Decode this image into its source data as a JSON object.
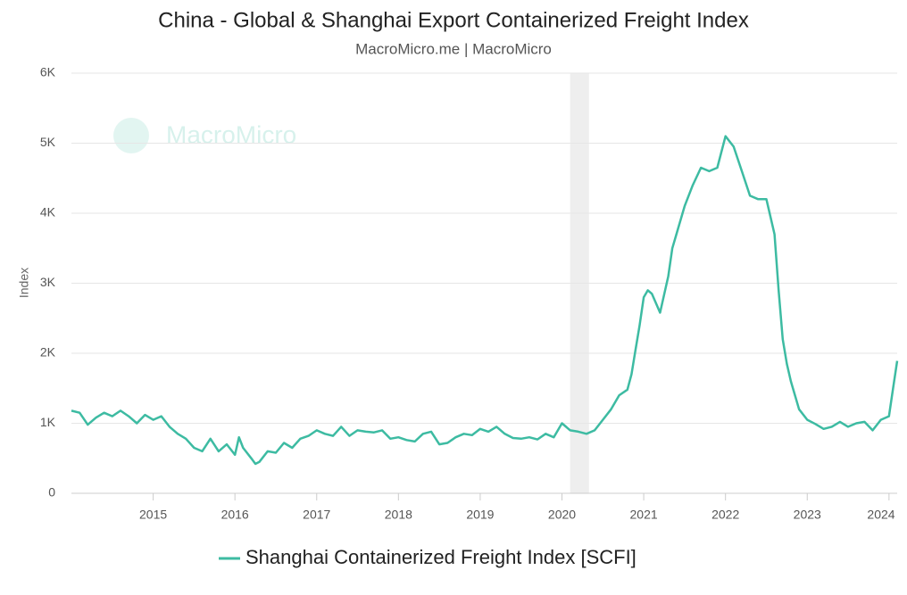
{
  "chart_data": {
    "type": "line",
    "title": "China - Global & Shanghai Export Containerized Freight Index",
    "subtitle": "MacroMicro.me | MacroMicro",
    "watermark": "MacroMicro",
    "y_label": "Index",
    "x": [
      2014.0,
      2014.1,
      2014.2,
      2014.3,
      2014.4,
      2014.5,
      2014.6,
      2014.7,
      2014.8,
      2014.9,
      2015.0,
      2015.1,
      2015.2,
      2015.3,
      2015.4,
      2015.5,
      2015.6,
      2015.7,
      2015.8,
      2015.9,
      2016.0,
      2016.05,
      2016.1,
      2016.2,
      2016.25,
      2016.3,
      2016.4,
      2016.5,
      2016.6,
      2016.7,
      2016.8,
      2016.9,
      2017.0,
      2017.1,
      2017.2,
      2017.3,
      2017.4,
      2017.5,
      2017.6,
      2017.7,
      2017.8,
      2017.9,
      2018.0,
      2018.1,
      2018.2,
      2018.3,
      2018.4,
      2018.5,
      2018.6,
      2018.7,
      2018.8,
      2018.9,
      2019.0,
      2019.1,
      2019.2,
      2019.3,
      2019.4,
      2019.5,
      2019.6,
      2019.7,
      2019.8,
      2019.9,
      2020.0,
      2020.1,
      2020.2,
      2020.3,
      2020.4,
      2020.5,
      2020.6,
      2020.7,
      2020.8,
      2020.85,
      2020.9,
      2020.95,
      2021.0,
      2021.05,
      2021.1,
      2021.2,
      2021.3,
      2021.35,
      2021.4,
      2021.5,
      2021.6,
      2021.7,
      2021.8,
      2021.9,
      2022.0,
      2022.1,
      2022.2,
      2022.3,
      2022.4,
      2022.5,
      2022.6,
      2022.65,
      2022.7,
      2022.75,
      2022.8,
      2022.9,
      2023.0,
      2023.1,
      2023.2,
      2023.3,
      2023.4,
      2023.5,
      2023.6,
      2023.7,
      2023.8,
      2023.9,
      2024.0,
      2024.05,
      2024.1
    ],
    "series": [
      {
        "name": "Shanghai Containerized Freight Index [SCFI]",
        "color": "#3dbba2",
        "values": [
          1180,
          1150,
          980,
          1080,
          1150,
          1100,
          1180,
          1100,
          1000,
          1120,
          1050,
          1100,
          950,
          850,
          780,
          650,
          600,
          780,
          600,
          700,
          550,
          800,
          650,
          500,
          420,
          450,
          600,
          580,
          720,
          650,
          780,
          820,
          900,
          850,
          820,
          950,
          820,
          900,
          880,
          870,
          900,
          780,
          800,
          760,
          740,
          850,
          880,
          700,
          720,
          800,
          850,
          830,
          920,
          880,
          950,
          850,
          790,
          780,
          800,
          770,
          850,
          800,
          1000,
          900,
          880,
          850,
          900,
          1050,
          1200,
          1400,
          1480,
          1700,
          2050,
          2400,
          2800,
          2900,
          2850,
          2580,
          3100,
          3500,
          3700,
          4100,
          4400,
          4650,
          4600,
          4650,
          5100,
          4950,
          4600,
          4250,
          4200,
          4200,
          3700,
          2900,
          2200,
          1850,
          1600,
          1200,
          1050,
          990,
          920,
          950,
          1020,
          950,
          1000,
          1020,
          900,
          1050,
          1100,
          1500,
          1890
        ]
      }
    ],
    "xlim": [
      2014.0,
      2024.1
    ],
    "xticks": [
      2015,
      2016,
      2017,
      2018,
      2019,
      2020,
      2021,
      2022,
      2023,
      2024
    ],
    "ylim": [
      0,
      6000
    ],
    "yticks": [
      0,
      {
        "value": 1000,
        "label": "1K"
      },
      {
        "value": 2000,
        "label": "2K"
      },
      {
        "value": 3000,
        "label": "3K"
      },
      {
        "value": 4000,
        "label": "4K"
      },
      {
        "value": 5000,
        "label": "5K"
      },
      {
        "value": 6000,
        "label": "6K"
      }
    ],
    "shaded_ranges": [
      [
        2020.1,
        2020.33
      ]
    ],
    "grid": true,
    "legend": "bottom"
  }
}
